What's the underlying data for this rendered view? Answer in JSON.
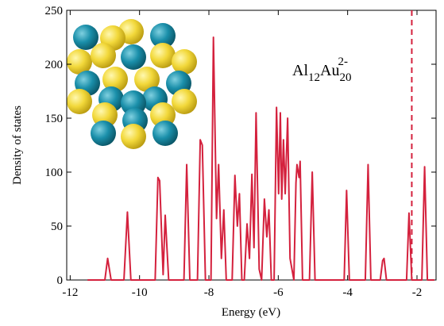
{
  "chart_data": {
    "type": "line",
    "x_label": "Energy (eV)",
    "y_label": "Density of states",
    "annotation": [
      "Al",
      "12",
      "Au",
      "20",
      "2-"
    ],
    "xlim": [
      -12.1,
      -1.45
    ],
    "ylim": [
      0,
      250
    ],
    "xticks": [
      -12,
      -10,
      -8,
      -6,
      -4,
      -2
    ],
    "yticks": [
      0,
      50,
      100,
      150,
      200,
      250
    ],
    "vline": -2.15,
    "vline_color": "#d4213d",
    "series": [
      {
        "color": "#d4213d",
        "x": [
          -11.5,
          -11.0,
          -10.92,
          -10.82,
          -10.45,
          -10.35,
          -10.25,
          -9.55,
          -9.47,
          -9.42,
          -9.32,
          -9.26,
          -9.16,
          -8.72,
          -8.64,
          -8.55,
          -8.33,
          -8.25,
          -8.19,
          -8.1,
          -7.94,
          -7.87,
          -7.78,
          -7.72,
          -7.64,
          -7.57,
          -7.5,
          -7.33,
          -7.25,
          -7.18,
          -7.12,
          -7.05,
          -6.98,
          -6.9,
          -6.83,
          -6.76,
          -6.7,
          -6.64,
          -6.55,
          -6.48,
          -6.4,
          -6.33,
          -6.27,
          -6.2,
          -6.12,
          -6.05,
          -5.99,
          -5.94,
          -5.9,
          -5.85,
          -5.8,
          -5.73,
          -5.66,
          -5.55,
          -5.49,
          -5.46,
          -5.4,
          -5.37,
          -5.3,
          -5.1,
          -5.02,
          -4.94,
          -4.1,
          -4.03,
          -3.95,
          -3.49,
          -3.41,
          -3.33,
          -3.06,
          -2.99,
          -2.95,
          -2.88,
          -2.3,
          -2.23,
          -2.15,
          -1.86,
          -1.78,
          -1.7,
          -1.5
        ],
        "values": [
          0,
          0,
          20,
          0,
          0,
          63,
          0,
          0,
          95,
          92,
          5,
          60,
          0,
          0,
          107,
          0,
          0,
          130,
          125,
          0,
          0,
          225,
          57,
          107,
          20,
          65,
          0,
          0,
          97,
          50,
          80,
          0,
          0,
          52,
          20,
          98,
          30,
          155,
          10,
          0,
          75,
          40,
          65,
          0,
          0,
          160,
          80,
          155,
          75,
          130,
          80,
          150,
          20,
          0,
          90,
          107,
          95,
          110,
          0,
          0,
          100,
          0,
          0,
          83,
          0,
          0,
          107,
          0,
          0,
          18,
          20,
          0,
          0,
          62,
          0,
          0,
          105,
          0,
          0
        ]
      }
    ]
  }
}
